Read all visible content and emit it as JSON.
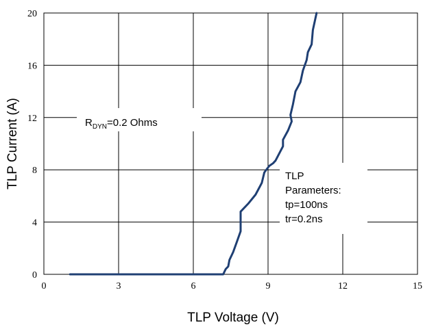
{
  "chart_data": {
    "type": "line",
    "xlabel": "TLP Voltage (V)",
    "ylabel": "TLP Current (A)",
    "xlim": [
      0,
      15
    ],
    "ylim": [
      0,
      20
    ],
    "xticks": [
      0,
      3,
      6,
      9,
      12,
      15
    ],
    "yticks": [
      0,
      4,
      8,
      12,
      16,
      20
    ],
    "x_tick_labels": [
      "0",
      "3",
      "6",
      "9",
      "12",
      "15"
    ],
    "y_tick_labels": [
      "0",
      "4",
      "8",
      "12",
      "16",
      "20"
    ],
    "grid": true,
    "line_color": "#1f3f73",
    "series": [
      {
        "x": [
          1.05,
          7.2,
          7.3,
          7.4,
          7.45,
          7.6,
          7.75,
          7.9,
          7.9,
          8.2,
          8.5,
          8.75,
          8.85,
          9.05,
          9.2,
          9.3,
          9.6,
          9.6,
          9.8,
          9.95,
          9.9,
          10.0,
          10.1,
          10.3,
          10.4,
          10.55,
          10.6,
          10.75,
          10.8,
          10.95
        ],
        "y": [
          0,
          0,
          0.4,
          0.6,
          1.1,
          1.7,
          2.5,
          3.3,
          4.8,
          5.4,
          6.1,
          7.0,
          7.8,
          8.3,
          8.5,
          8.7,
          9.8,
          10.3,
          11.0,
          11.7,
          12.2,
          13.0,
          14.0,
          14.7,
          15.6,
          16.4,
          17.0,
          17.6,
          18.7,
          20.0
        ]
      }
    ],
    "annotations": [
      {
        "text": "R",
        "subscript": "DYN",
        "suffix": "=0.2 Ohms"
      },
      {
        "lines": [
          "TLP",
          "Parameters:",
          "tp=100ns",
          "tr=0.2ns"
        ]
      }
    ]
  }
}
